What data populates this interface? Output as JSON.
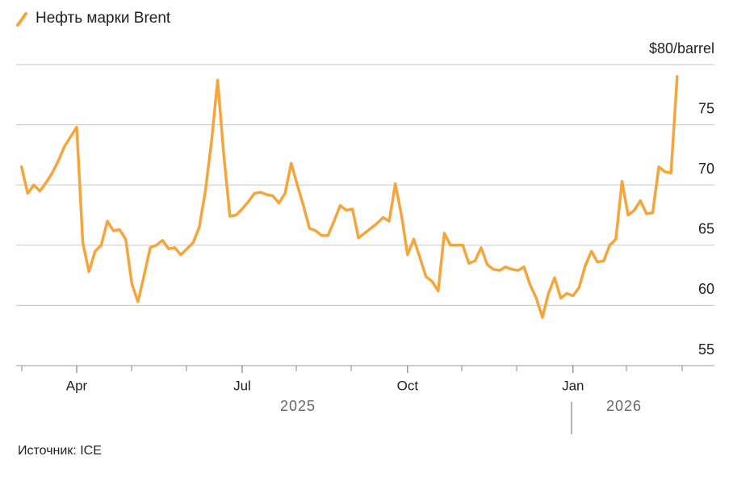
{
  "chart_data": {
    "type": "line",
    "legend_label": "Нефть марки Brent",
    "source": "Источник: ICE",
    "year_labels": [
      "2025",
      "2026"
    ],
    "categories": [
      null,
      null,
      null,
      null,
      null,
      null,
      null,
      null,
      null,
      "Apr",
      null,
      null,
      null,
      null,
      null,
      null,
      null,
      null,
      null,
      null,
      null,
      null,
      null,
      null,
      null,
      null,
      null,
      null,
      null,
      null,
      null,
      null,
      null,
      null,
      null,
      null,
      "Jul",
      null,
      null,
      null,
      null,
      null,
      null,
      null,
      null,
      null,
      null,
      null,
      null,
      null,
      null,
      null,
      null,
      null,
      null,
      null,
      null,
      null,
      null,
      null,
      null,
      null,
      null,
      "Oct",
      null,
      null,
      null,
      null,
      null,
      null,
      null,
      null,
      null,
      null,
      null,
      null,
      null,
      null,
      null,
      null,
      null,
      null,
      null,
      null,
      null,
      null,
      null,
      null,
      null,
      null,
      "Jan",
      null,
      null,
      null,
      null,
      null,
      null,
      null,
      null,
      null,
      null,
      null,
      null,
      null,
      null,
      null,
      null,
      null
    ],
    "series": [
      {
        "name": "Нефть марки Brent",
        "color": "#f5a53c",
        "values": [
          71.5,
          69.3,
          70,
          69.5,
          70.2,
          71,
          72,
          73.2,
          74,
          74.8,
          65.2,
          62.8,
          64.5,
          65,
          67,
          66.2,
          66.3,
          65.5,
          61.8,
          60.3,
          62.5,
          64.8,
          65,
          65.4,
          64.7,
          64.8,
          64.2,
          64.7,
          65.2,
          66.5,
          69.5,
          73.6,
          78.7,
          72.5,
          67.4,
          67.5,
          68,
          68.6,
          69.3,
          69.4,
          69.2,
          69.1,
          68.5,
          69.3,
          71.8,
          70,
          68.3,
          66.4,
          66.2,
          65.8,
          65.8,
          67,
          68.3,
          67.9,
          68,
          65.6,
          66,
          66.4,
          66.8,
          67.3,
          67,
          70.1,
          67.5,
          64.2,
          65.5,
          64,
          62.4,
          62,
          61.2,
          66,
          65,
          65,
          65,
          63.5,
          63.7,
          64.8,
          63.4,
          63,
          62.9,
          63.2,
          63,
          62.9,
          63.2,
          61.7,
          60.6,
          59,
          61,
          62.3,
          60.6,
          61,
          60.8,
          61.5,
          63.3,
          64.5,
          63.6,
          63.7,
          65,
          65.5,
          70.3,
          67.5,
          67.9,
          68.7,
          67.6,
          67.7,
          71.5,
          71.1,
          71,
          79
        ]
      }
    ],
    "ylim": [
      55,
      80
    ],
    "yticks": [
      55,
      60,
      65,
      70,
      75,
      {
        "value": 80,
        "label": "$80/barrel"
      }
    ],
    "grid": true
  }
}
